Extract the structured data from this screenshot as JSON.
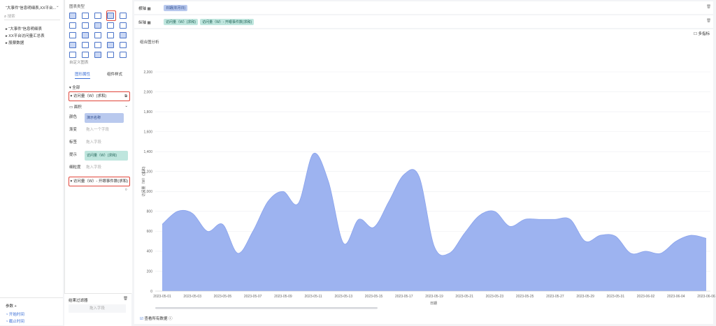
{
  "sidebar": {
    "dataset": "“大事件”信息明细表,XX平台...",
    "search": "搜索",
    "tree": [
      "“大事件”信息明细表",
      "XX平台访问量汇总表",
      "股票数据"
    ],
    "params_title": "参数",
    "params": [
      "开始时间",
      "截止时间"
    ]
  },
  "config": {
    "chart_types_title": "图表类型",
    "custom": "自定义图表",
    "tabs": [
      "图形属性",
      "组件样式"
    ],
    "all": "全部",
    "measure1": "访问量（W）(求和)",
    "mark_type": "面积",
    "properties": [
      {
        "name": "颜色",
        "value": "演示名称"
      },
      {
        "name": "渐变",
        "value": "拖入一个字段"
      },
      {
        "name": "标签",
        "value": "拖入字段"
      },
      {
        "name": "提示",
        "value": "访问量（W）(求和)"
      },
      {
        "name": "细粒度",
        "value": "拖入字段"
      }
    ],
    "measure2": "访问量（W）- 开眼事件数(求和)",
    "filter_title": "结果过滤器",
    "filter_placeholder": "拖入字段"
  },
  "shelves": {
    "x_label": "横轴",
    "x_fields": [
      "日期(年月日)"
    ],
    "y_label": "纵轴",
    "y_fields": [
      "访问量（W）(求和)",
      "访问量（W）- 开眼事件数(求和)"
    ]
  },
  "toolbar": {
    "option": "多指标"
  },
  "chart_data": {
    "type": "area",
    "title": "组合图分析",
    "y_label": "访问量（W）(求和)",
    "x_label": "日期",
    "color": "#9db3f0",
    "line_color": "#8aa3ec",
    "categories": [
      "2023-05-01",
      null,
      "2023-05-03",
      null,
      "2023-05-05",
      null,
      "2023-05-07",
      null,
      "2023-05-09",
      null,
      "2023-05-11",
      null,
      "2023-05-13",
      null,
      "2023-05-15",
      null,
      "2023-05-17",
      null,
      "2023-05-19",
      null,
      "2023-05-21",
      null,
      "2023-05-23",
      null,
      "2023-05-25",
      null,
      "2023-05-27",
      null,
      "2023-05-29",
      null,
      "2023-05-31",
      null,
      "2023-06-02",
      null,
      "2023-06-04",
      null,
      "2023-06-06"
    ],
    "values": [
      670,
      800,
      780,
      600,
      670,
      380,
      600,
      900,
      1000,
      880,
      1380,
      1100,
      480,
      720,
      640,
      900,
      1170,
      1150,
      450,
      380,
      580,
      760,
      800,
      650,
      720,
      720,
      720,
      720,
      500,
      560,
      550,
      380,
      400,
      380,
      500,
      560,
      530
    ],
    "ylim": [
      0,
      2200
    ],
    "yticks": [
      0,
      200,
      400,
      600,
      800,
      {
        "value": 1000,
        "label": "1,000"
      },
      {
        "value": 1200,
        "label": "1,200"
      },
      {
        "value": 1400,
        "label": "1,400"
      },
      {
        "value": 1600,
        "label": "1,600"
      },
      {
        "value": 1800,
        "label": "1,800"
      },
      {
        "value": 2000,
        "label": "2,000"
      },
      {
        "value": 2200,
        "label": "2,200"
      }
    ],
    "grid": true
  },
  "footer": {
    "view_all": "查看所有数据"
  }
}
